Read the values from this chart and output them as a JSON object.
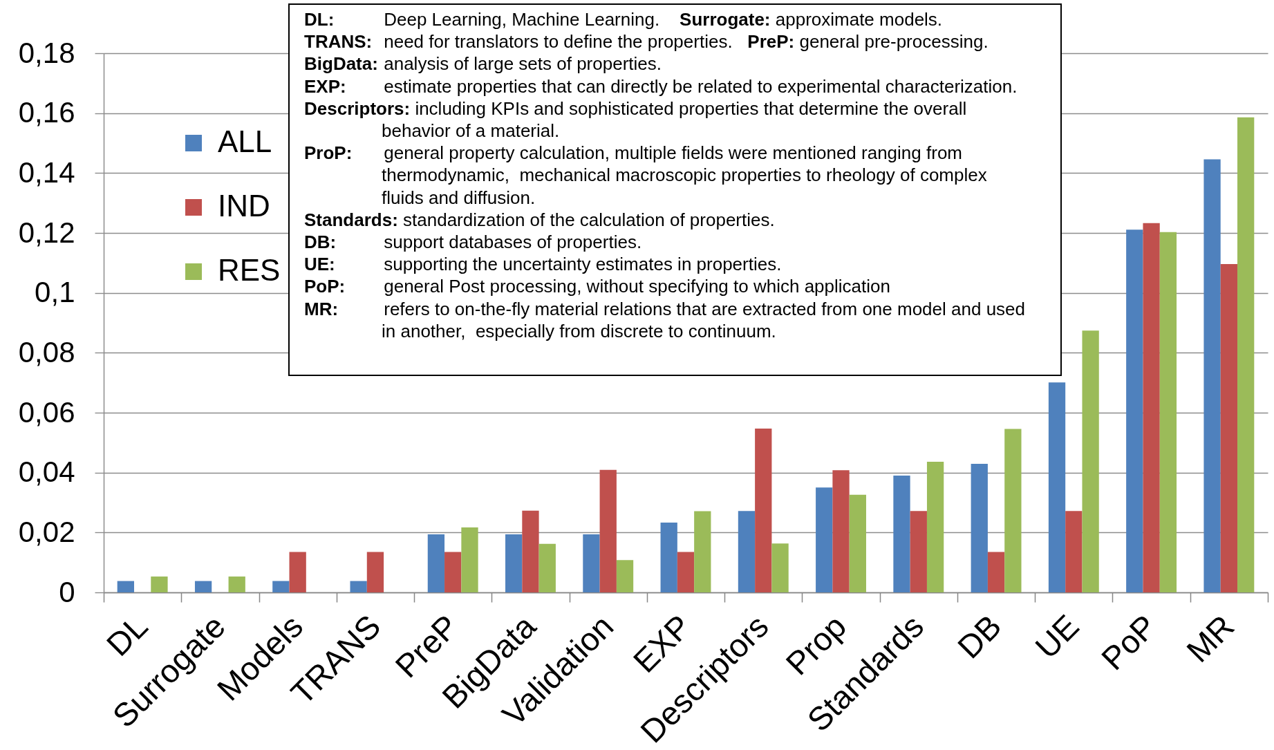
{
  "chart_data": {
    "type": "bar",
    "categories": [
      "DL",
      "Surrogate",
      "Models",
      "TRANS",
      "PreP",
      "BigData",
      "Validation",
      "EXP",
      "Descriptors",
      "Prop",
      "Standards",
      "DB",
      "UE",
      "PoP",
      "MR"
    ],
    "series": [
      {
        "name": "ALL",
        "color": "#4f81bd",
        "values": [
          0.0038,
          0.0038,
          0.0038,
          0.0038,
          0.0194,
          0.0194,
          0.0194,
          0.0233,
          0.0272,
          0.035,
          0.039,
          0.0429,
          0.0701,
          0.1211,
          0.1446
        ]
      },
      {
        "name": "IND",
        "color": "#c0504d",
        "values": [
          null,
          null,
          0.0135,
          0.0135,
          0.0135,
          0.0273,
          0.0409,
          0.0135,
          0.0547,
          0.0408,
          0.0272,
          0.0135,
          0.0272,
          0.1233,
          0.1096
        ]
      },
      {
        "name": "RES",
        "color": "#9bbb59",
        "values": [
          0.0053,
          0.0053,
          null,
          null,
          0.0217,
          0.0162,
          0.0108,
          0.0271,
          0.0163,
          0.0326,
          0.0436,
          0.0546,
          0.0874,
          0.1203,
          0.1586
        ]
      }
    ],
    "ylim": [
      0,
      0.18
    ],
    "yticks": [
      0,
      {
        "value": 0.02,
        "label": "0,02"
      },
      {
        "value": 0.04,
        "label": "0,04"
      },
      {
        "value": 0.06,
        "label": "0,06"
      },
      {
        "value": 0.08,
        "label": "0,08"
      },
      {
        "value": 0.1,
        "label": "0,1"
      },
      {
        "value": 0.12,
        "label": "0,12"
      },
      {
        "value": 0.14,
        "label": "0,14"
      },
      {
        "value": 0.16,
        "label": "0,16"
      },
      {
        "value": 0.18,
        "label": "0,18"
      }
    ],
    "grid": "y",
    "legend": "top left",
    "annotations": [
      "DL: Deep Learning, Machine Learning.    Surrogate: approximate models.",
      "TRANS: need for translators to define the properties.   PreP: general pre-processing.",
      "BigData: analysis of large sets of properties.",
      "EXP: estimate properties that can directly be related to experimental characterization.",
      "Descriptors: including KPIs and sophisticated properties that determine the overall\nbehavior of a material.",
      "ProP: general property calculation, multiple fields were mentioned ranging from\nthermodynamic,  mechanical macroscopic properties to rheology of complex\nfluids and diffusion.",
      "Standards: standardization of the calculation of properties.",
      "DB: support databases of properties.",
      "UE: supporting the uncertainty estimates in properties.",
      "PoP: general Post processing, without specifying to which application",
      "MR: refers to on-the-fly material relations that are extracted from one model and used\nin another,  especially from discrete to continuum."
    ]
  }
}
